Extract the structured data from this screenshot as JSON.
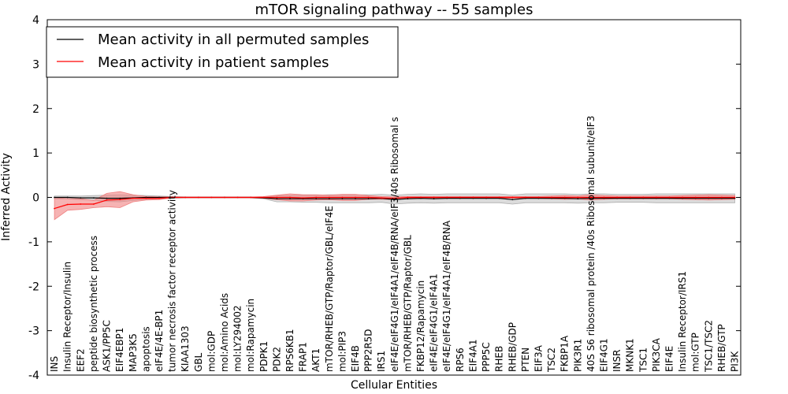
{
  "chart_data": {
    "type": "line",
    "title": "mTOR signaling pathway -- 55 samples",
    "xlabel": "Cellular Entities",
    "ylabel": "Inferred Activity",
    "ylim": [
      -4,
      4
    ],
    "yticks": [
      "-4",
      "-3",
      "-2",
      "-1",
      "0",
      "1",
      "2",
      "3",
      "4"
    ],
    "grid": false,
    "legend_position": "top-left",
    "categories": [
      "INS",
      "Insulin Receptor/Insulin",
      "EEF2",
      "peptide biosynthetic process",
      "ASK1/PP5C",
      "EIF4EBP1",
      "MAP3K5",
      "apoptosis",
      "eIF4E/4E-BP1",
      "tumor necrosis factor receptor activity",
      "KIAA1303",
      "GBL",
      "mol:GDP",
      "mol:Amino Acids",
      "mol:LY294002",
      "mol:Rapamycin",
      "PDPK1",
      "PDK2",
      "RPS6KB1",
      "FRAP1",
      "AKT1",
      "mTOR/RHEB/GTP/Raptor/GBL/eIF4E",
      "mol:PIP3",
      "EIF4B",
      "PPP2R5D",
      "IRS1",
      "eIF4E/eIF4G1/eIF4A1/eIF4B/RNA/eIF3/40s Ribosomal s",
      "mTOR/RHEB/GTP/Raptor/GBL",
      "FKBP12/Rapamycin",
      "eIF4E/eIF4G1/eIF4A1",
      "eIF4E/eIF4G1/eIF4A1/eIF4B/RNA",
      "RPS6",
      "EIF4A1",
      "PPP5C",
      "RHEB",
      "RHEB/GDP",
      "PTEN",
      "EIF3A",
      "TSC2",
      "FKBP1A",
      "PIK3R1",
      "40S S6 ribosomal protein /40s Ribosomal subunit/eIF3",
      "EIF4G1",
      "INSR",
      "MKNK1",
      "TSC1",
      "PIK3CA",
      "EIF4E",
      "Insulin Receptor/IRS1",
      "mol:GTP",
      "TSC1/TSC2",
      "RHEB/GTP",
      "PI3K"
    ],
    "series": [
      {
        "name": "Mean activity in all permuted samples",
        "color": "#000000",
        "band_color": "#b0b0b0",
        "values": [
          0.0,
          0.0,
          -0.01,
          -0.01,
          -0.02,
          -0.02,
          -0.01,
          0.0,
          0.0,
          0.0,
          0.0,
          0.0,
          0.0,
          0.0,
          0.0,
          0.0,
          -0.01,
          -0.03,
          -0.03,
          -0.03,
          -0.03,
          -0.03,
          -0.03,
          -0.03,
          -0.03,
          -0.02,
          -0.05,
          -0.03,
          -0.02,
          -0.03,
          -0.02,
          -0.02,
          -0.02,
          -0.02,
          -0.02,
          -0.05,
          -0.02,
          -0.02,
          -0.02,
          -0.02,
          -0.03,
          -0.02,
          -0.02,
          -0.02,
          -0.02,
          -0.02,
          -0.02,
          -0.02,
          -0.02,
          -0.02,
          -0.02,
          -0.02,
          -0.02
        ],
        "spread": [
          0.03,
          0.03,
          0.04,
          0.05,
          0.07,
          0.08,
          0.06,
          0.04,
          0.03,
          0.02,
          0.01,
          0.01,
          0.01,
          0.01,
          0.01,
          0.01,
          0.02,
          0.07,
          0.07,
          0.08,
          0.08,
          0.09,
          0.09,
          0.09,
          0.09,
          0.09,
          0.1,
          0.1,
          0.1,
          0.1,
          0.1,
          0.1,
          0.1,
          0.1,
          0.1,
          0.1,
          0.1,
          0.1,
          0.1,
          0.1,
          0.1,
          0.1,
          0.1,
          0.09,
          0.09,
          0.09,
          0.1,
          0.1,
          0.1,
          0.1,
          0.1,
          0.1,
          0.1
        ]
      },
      {
        "name": "Mean activity in patient samples",
        "color": "#ff0000",
        "band_color": "#f08080",
        "values": [
          -0.25,
          -0.16,
          -0.15,
          -0.15,
          -0.06,
          -0.05,
          -0.02,
          -0.02,
          -0.02,
          0.0,
          0.0,
          0.0,
          0.0,
          0.0,
          0.0,
          0.0,
          0.0,
          0.0,
          0.0,
          -0.01,
          0.0,
          0.0,
          0.0,
          0.0,
          0.0,
          -0.01,
          -0.02,
          0.0,
          0.0,
          0.0,
          0.0,
          0.0,
          0.0,
          0.0,
          0.0,
          0.0,
          0.0,
          0.0,
          0.0,
          0.0,
          0.0,
          0.0,
          0.0,
          0.0,
          0.0,
          0.0,
          0.0,
          0.0,
          0.0,
          0.0,
          0.0,
          0.0,
          0.0
        ],
        "spread": [
          0.25,
          0.13,
          0.12,
          0.08,
          0.15,
          0.18,
          0.08,
          0.04,
          0.03,
          0.01,
          0.01,
          0.01,
          0.01,
          0.01,
          0.01,
          0.01,
          0.02,
          0.05,
          0.08,
          0.07,
          0.06,
          0.05,
          0.07,
          0.07,
          0.04,
          0.03,
          0.03,
          0.02,
          0.02,
          0.02,
          0.02,
          0.02,
          0.02,
          0.02,
          0.02,
          0.02,
          0.02,
          0.02,
          0.03,
          0.04,
          0.03,
          0.06,
          0.04,
          0.03,
          0.03,
          0.03,
          0.03,
          0.03,
          0.04,
          0.05,
          0.06,
          0.05,
          0.04
        ]
      }
    ]
  }
}
